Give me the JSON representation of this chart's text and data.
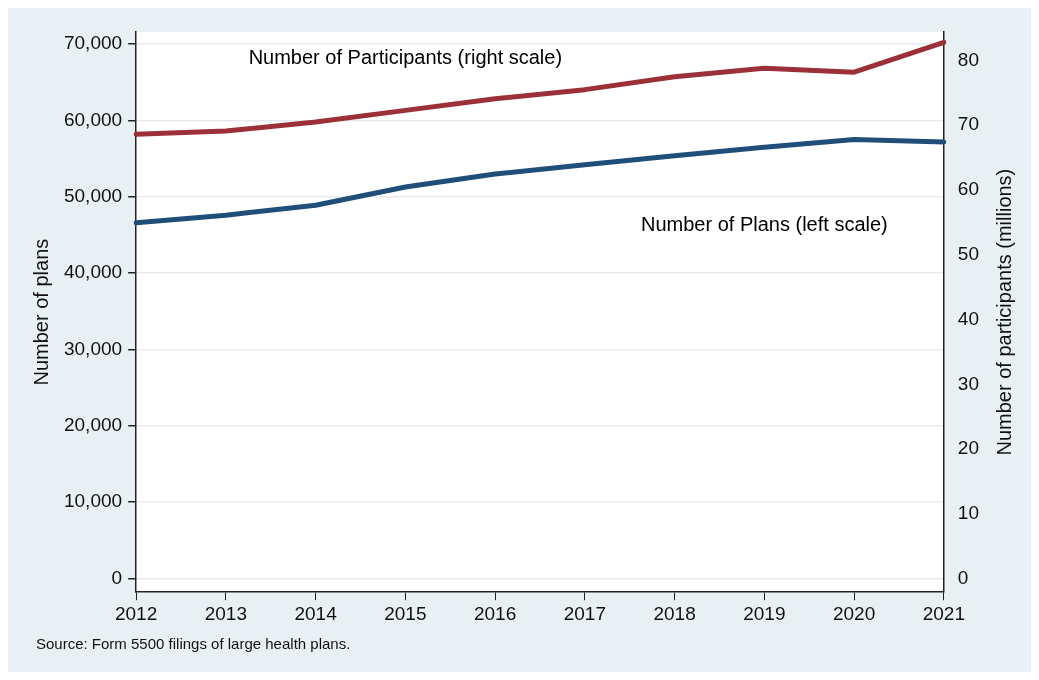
{
  "chart_data": {
    "type": "line",
    "categories": [
      "2012",
      "2013",
      "2014",
      "2015",
      "2016",
      "2017",
      "2018",
      "2019",
      "2020",
      "2021"
    ],
    "series": [
      {
        "name": "Number of Participants (right scale)",
        "color": "#9b3039",
        "axis": "y2",
        "values": [
          68.6,
          69.1,
          70.5,
          72.3,
          74.1,
          75.5,
          77.5,
          78.8,
          78.2,
          82.8
        ]
      },
      {
        "name": "Number of Plans (left scale)",
        "color": "#1f4e79",
        "values": [
          46600,
          47600,
          48900,
          51300,
          53000,
          54200,
          55400,
          56500,
          57500,
          57200
        ]
      }
    ],
    "ylabel": "Number of plans",
    "y2label": "Number of participants (millions)",
    "ylim": [
      -1800,
      71600
    ],
    "yticks": [
      {
        "value": 0,
        "label": "0"
      },
      {
        "value": 10000,
        "label": "10,000"
      },
      {
        "value": 20000,
        "label": "20,000"
      },
      {
        "value": 30000,
        "label": "30,000"
      },
      {
        "value": 40000,
        "label": "40,000"
      },
      {
        "value": 50000,
        "label": "50,000"
      },
      {
        "value": 60000,
        "label": "60,000"
      },
      {
        "value": 70000,
        "label": "70,000"
      }
    ],
    "y2lim": [
      -2.1,
      84.4
    ],
    "y2ticks": [
      0,
      10,
      20,
      30,
      40,
      50,
      60,
      70,
      80
    ],
    "grid": "y",
    "legend": false,
    "marker": "none",
    "line_style": "solid",
    "annotations": [
      "Source: Form 5500 filings of large health plans."
    ]
  }
}
